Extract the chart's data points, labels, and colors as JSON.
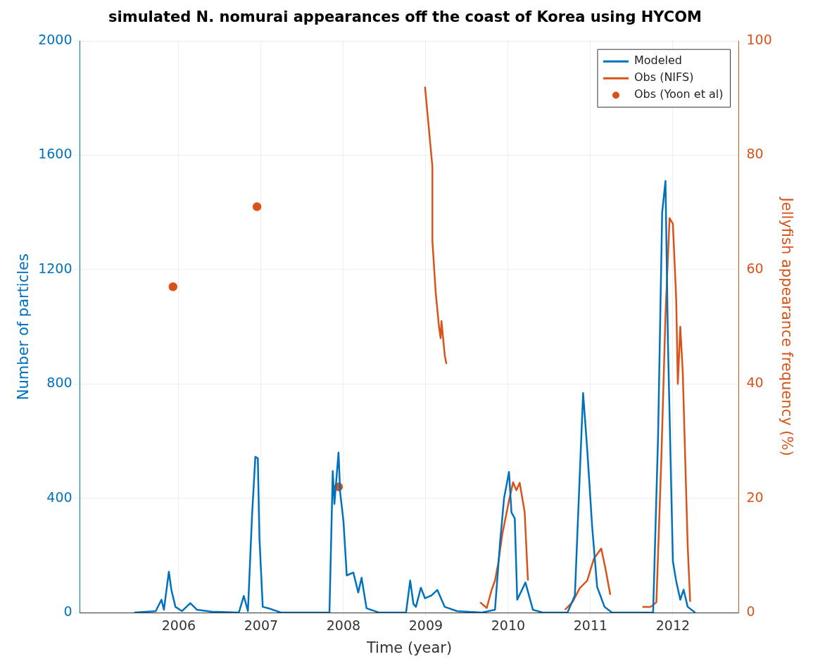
{
  "chart_data": {
    "type": "line",
    "title": "simulated N. nomurai appearances off the coast of Korea using HYCOM",
    "xlabel": "Time (year)",
    "ylabel": "Number of particles",
    "y2label": "Jellyfish appearance frequency (%)",
    "xlim": [
      2004.8,
      2012.8
    ],
    "xticks": [
      2006,
      2007,
      2008,
      2009,
      2010,
      2011,
      2012
    ],
    "ylim": [
      0,
      2000
    ],
    "yticks": [
      0,
      400,
      800,
      1200,
      1600,
      2000
    ],
    "y2lim": [
      0,
      100
    ],
    "y2ticks": [
      0,
      20,
      40,
      60,
      80,
      100
    ],
    "grid": true,
    "legend": "top right",
    "series": [
      {
        "name": "Modeled",
        "color": "#0072bd",
        "x": [
          2005.46,
          2005.72,
          2005.79,
          2005.82,
          2005.88,
          2005.91,
          2005.96,
          2006.04,
          2006.14,
          2006.22,
          2006.4,
          2006.73,
          2006.79,
          2006.84,
          2006.89,
          2006.93,
          2006.96,
          2006.98,
          2007.02,
          2007.09,
          2007.24,
          2007.83,
          2007.87,
          2007.89,
          2007.94,
          2007.96,
          2008.0,
          2008.04,
          2008.12,
          2008.18,
          2008.22,
          2008.28,
          2008.43,
          2008.76,
          2008.81,
          2008.85,
          2008.88,
          2008.94,
          2008.99,
          2009.07,
          2009.14,
          2009.23,
          2009.38,
          2009.68,
          2009.84,
          2009.9,
          2009.95,
          2010.01,
          2010.04,
          2010.08,
          2010.11,
          2010.21,
          2010.3,
          2010.42,
          2010.72,
          2010.81,
          2010.87,
          2010.91,
          2010.96,
          2011.02,
          2011.08,
          2011.17,
          2011.26,
          2011.76,
          2011.82,
          2011.87,
          2011.91,
          2011.94,
          2012.0,
          2012.04,
          2012.09,
          2012.13,
          2012.18,
          2012.27
        ],
        "values": [
          0,
          5,
          45,
          10,
          143,
          80,
          20,
          5,
          33,
          10,
          3,
          0,
          58,
          5,
          340,
          545,
          540,
          258,
          20,
          15,
          0,
          0,
          495,
          380,
          560,
          420,
          320,
          130,
          140,
          70,
          122,
          15,
          0,
          0,
          112,
          30,
          20,
          87,
          50,
          60,
          79,
          20,
          5,
          0,
          10,
          240,
          400,
          492,
          350,
          330,
          45,
          105,
          10,
          0,
          0,
          60,
          487,
          768,
          570,
          300,
          90,
          20,
          0,
          0,
          615,
          1400,
          1510,
          946,
          180,
          110,
          45,
          80,
          20,
          0
        ]
      },
      {
        "name": "Obs (NIFS)",
        "axis": "y2",
        "color": "#d95319",
        "x": [
          2008.99,
          2009.08,
          2009.08,
          2009.12,
          2009.16,
          2009.18,
          2009.19,
          2009.23,
          2009.25,
          2009.5,
          2009.66,
          2009.74,
          2009.8,
          2009.84,
          2009.88,
          2009.93,
          2010.01,
          2010.06,
          2010.1,
          2010.14,
          2010.2,
          2010.24,
          2010.5,
          2010.69,
          2010.78,
          2010.87,
          2010.96,
          2011.04,
          2011.13,
          2011.18,
          2011.24,
          2011.4,
          2011.63,
          2011.73,
          2011.8,
          2011.86,
          2011.91,
          2011.96,
          2012.0,
          2012.04,
          2012.06,
          2012.09,
          2012.12,
          2012.18,
          2012.21
        ],
        "values": [
          92,
          78,
          65,
          56,
          50,
          48,
          51,
          45,
          43.5,
          null,
          1.8,
          0.8,
          4,
          5.6,
          8.7,
          13.8,
          19.6,
          22.8,
          21.4,
          22.7,
          17.6,
          5.6,
          null,
          0.5,
          1.8,
          4.3,
          5.6,
          9.4,
          11.2,
          7.8,
          3.1,
          null,
          1,
          1,
          1.8,
          27,
          52,
          69,
          68,
          55,
          40,
          50,
          42,
          11.6,
          1.9
        ]
      },
      {
        "name": "Obs (Yoon et al)",
        "type": "scatter",
        "axis": "y2",
        "color": "#d95319",
        "marker": "circle",
        "x": [
          2005.93,
          2006.95,
          2007.94
        ],
        "values": [
          57,
          71,
          22
        ]
      }
    ]
  }
}
